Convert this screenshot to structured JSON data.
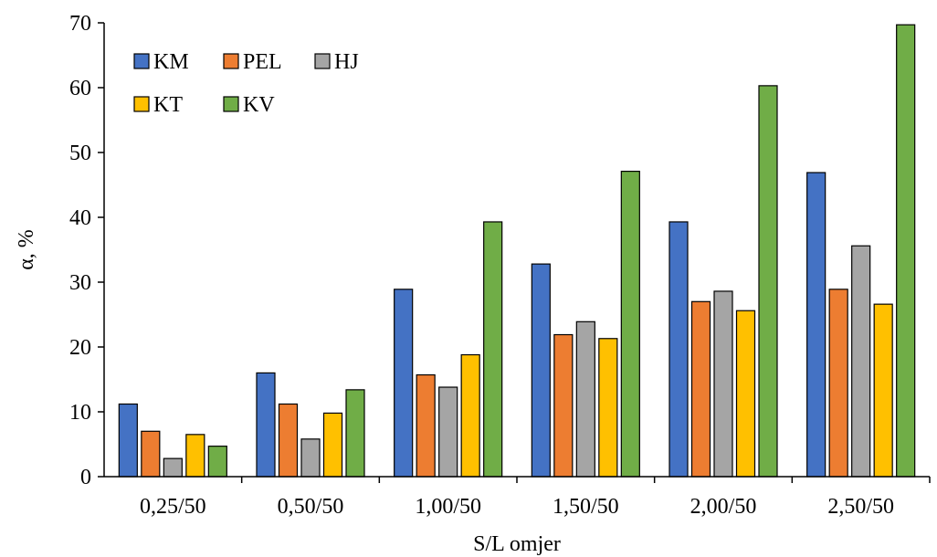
{
  "chart_data": {
    "type": "bar",
    "title": "",
    "xlabel": "S/L omjer",
    "ylabel": "α, %",
    "ylim": [
      0,
      70
    ],
    "yticks": [
      0,
      10,
      20,
      30,
      40,
      50,
      60,
      70
    ],
    "grid": false,
    "legend_placement": "top-left",
    "categories": [
      "0,25/50",
      "0,50/50",
      "1,00/50",
      "1,50/50",
      "2,00/50",
      "2,50/50"
    ],
    "series": [
      {
        "name": "KM",
        "color": "#4472C4",
        "values": [
          11.2,
          16.0,
          28.9,
          32.8,
          39.3,
          46.9
        ]
      },
      {
        "name": "PEL",
        "color": "#ED7D31",
        "values": [
          7.0,
          11.2,
          15.7,
          21.9,
          27.0,
          28.9
        ]
      },
      {
        "name": "HJ",
        "color": "#A5A5A5",
        "values": [
          2.8,
          5.8,
          13.8,
          23.9,
          28.6,
          35.6
        ]
      },
      {
        "name": "KT",
        "color": "#FFC000",
        "values": [
          6.5,
          9.8,
          18.8,
          21.3,
          25.6,
          26.6
        ]
      },
      {
        "name": "KV",
        "color": "#70AD47",
        "values": [
          4.7,
          13.4,
          39.3,
          47.1,
          60.3,
          69.7
        ]
      }
    ]
  }
}
